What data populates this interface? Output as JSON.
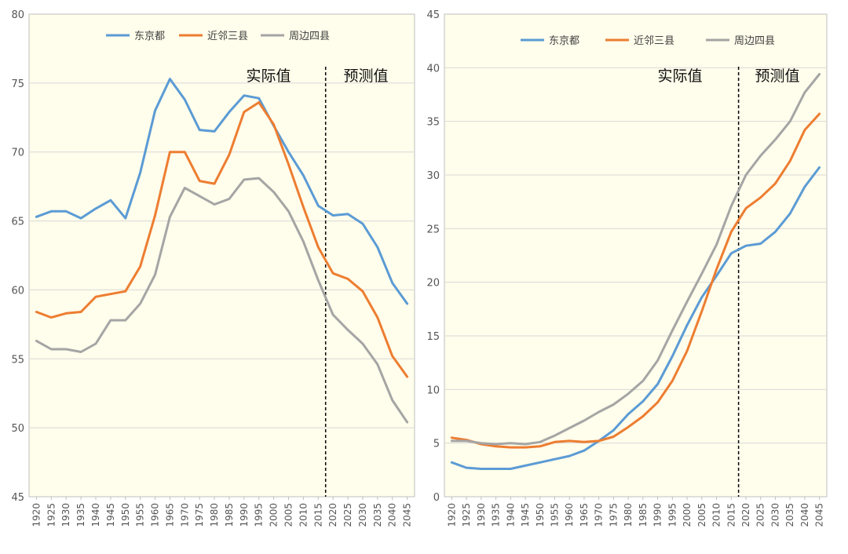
{
  "chart_data": [
    {
      "type": "line",
      "title": "",
      "xlabel": "",
      "ylabel": "",
      "ylim": [
        45,
        80
      ],
      "yticks": [
        45,
        50,
        55,
        60,
        65,
        70,
        75,
        80
      ],
      "x": [
        1920,
        1925,
        1930,
        1935,
        1940,
        1945,
        1950,
        1955,
        1960,
        1965,
        1970,
        1975,
        1980,
        1985,
        1990,
        1995,
        2000,
        2005,
        2010,
        2015,
        2020,
        2025,
        2030,
        2035,
        2040,
        2045
      ],
      "divider_x": 2015,
      "region_labels": [
        "实际值",
        "预测值"
      ],
      "legend": "top-center",
      "series": [
        {
          "name": "东京都",
          "color": "#5B9BD5",
          "values": [
            65.3,
            65.7,
            65.7,
            65.2,
            65.9,
            66.5,
            65.2,
            68.5,
            73.0,
            75.3,
            73.8,
            71.6,
            71.5,
            72.9,
            74.1,
            73.9,
            71.9,
            70.0,
            68.3,
            66.1,
            65.4,
            65.5,
            64.8,
            63.1,
            60.5,
            59.0
          ]
        },
        {
          "name": "近邻三县",
          "color": "#ED7D31",
          "values": [
            58.4,
            58.0,
            58.3,
            58.4,
            59.5,
            59.7,
            59.9,
            61.7,
            65.4,
            70.0,
            70.0,
            67.9,
            67.7,
            69.8,
            72.9,
            73.6,
            72.0,
            69.1,
            66.0,
            63.1,
            61.2,
            60.8,
            59.9,
            58.0,
            55.2,
            53.7
          ]
        },
        {
          "name": "周边四县",
          "color": "#A5A5A5",
          "values": [
            56.3,
            55.7,
            55.7,
            55.5,
            56.1,
            57.8,
            57.8,
            59.0,
            61.1,
            65.3,
            67.4,
            66.8,
            66.2,
            66.6,
            68.0,
            68.1,
            67.1,
            65.7,
            63.5,
            60.7,
            58.2,
            57.1,
            56.1,
            54.6,
            52.0,
            50.4
          ]
        }
      ]
    },
    {
      "type": "line",
      "title": "",
      "xlabel": "",
      "ylabel": "",
      "ylim": [
        0,
        45
      ],
      "yticks": [
        0,
        5,
        10,
        15,
        20,
        25,
        30,
        35,
        40,
        45
      ],
      "x": [
        1920,
        1925,
        1930,
        1935,
        1940,
        1945,
        1950,
        1955,
        1960,
        1965,
        1970,
        1975,
        1980,
        1985,
        1990,
        1995,
        2000,
        2005,
        2010,
        2015,
        2020,
        2025,
        2030,
        2035,
        2040,
        2045
      ],
      "divider_x": 2015,
      "region_labels": [
        "实际值",
        "预测值"
      ],
      "legend": "top-center",
      "series": [
        {
          "name": "东京都",
          "color": "#5B9BD5",
          "values": [
            3.2,
            2.7,
            2.6,
            2.6,
            2.6,
            2.9,
            3.2,
            3.5,
            3.8,
            4.3,
            5.2,
            6.2,
            7.7,
            8.9,
            10.5,
            13.1,
            16.0,
            18.6,
            20.6,
            22.7,
            23.4,
            23.6,
            24.7,
            26.4,
            28.9,
            30.7
          ]
        },
        {
          "name": "近邻三县",
          "color": "#ED7D31",
          "values": [
            5.5,
            5.3,
            4.9,
            4.7,
            4.6,
            4.6,
            4.7,
            5.1,
            5.2,
            5.1,
            5.2,
            5.6,
            6.5,
            7.5,
            8.8,
            10.8,
            13.6,
            17.3,
            21.2,
            24.7,
            26.9,
            27.9,
            29.2,
            31.3,
            34.2,
            35.7
          ]
        },
        {
          "name": "周边四县",
          "color": "#A5A5A5",
          "values": [
            5.2,
            5.2,
            5.0,
            4.9,
            5.0,
            4.9,
            5.1,
            5.7,
            6.4,
            7.1,
            7.9,
            8.6,
            9.6,
            10.8,
            12.7,
            15.5,
            18.2,
            20.8,
            23.5,
            27.1,
            30.0,
            31.8,
            33.3,
            35.0,
            37.7,
            39.4
          ]
        }
      ]
    }
  ]
}
